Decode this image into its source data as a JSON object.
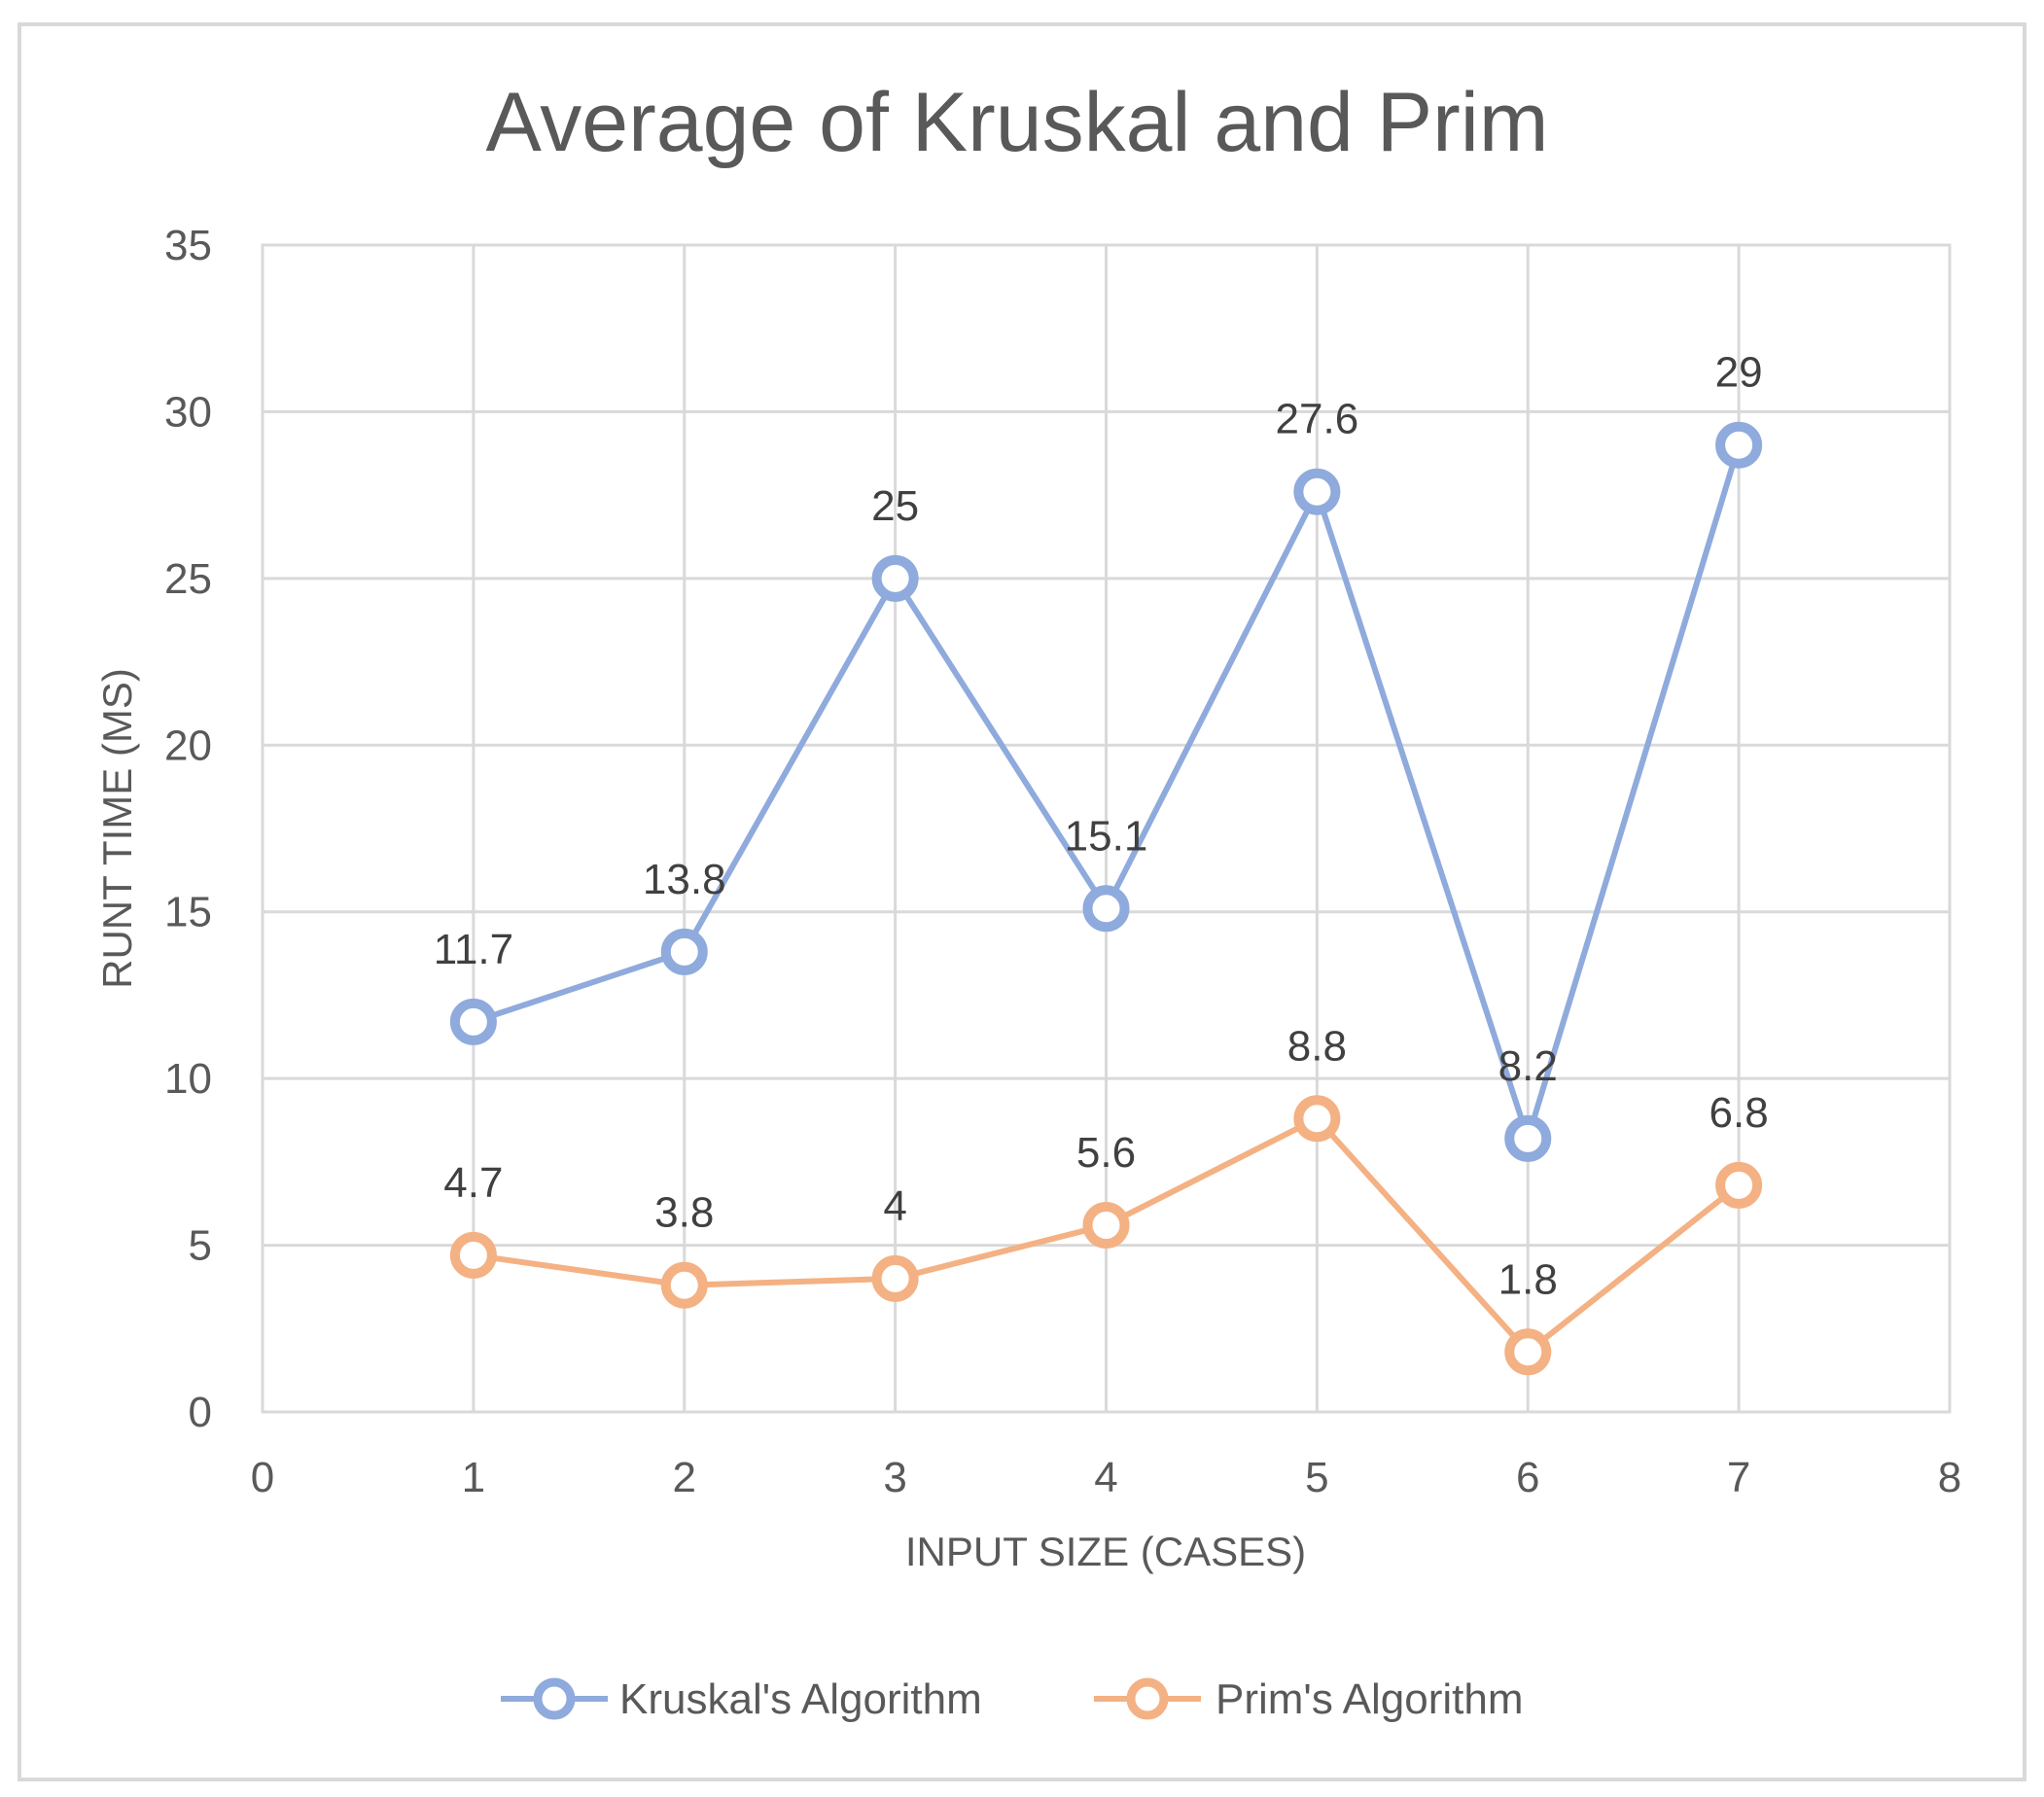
{
  "chart_data": {
    "type": "line",
    "title": "Average of Kruskal and Prim",
    "xlabel": "INPUT SIZE (CASES)",
    "ylabel": "RUNT TIME (MS)",
    "xlim": [
      0,
      8
    ],
    "ylim": [
      0,
      35
    ],
    "x_ticks": [
      "0",
      "1",
      "2",
      "3",
      "4",
      "5",
      "6",
      "7",
      "8"
    ],
    "y_ticks": [
      "0",
      "5",
      "10",
      "15",
      "20",
      "25",
      "30",
      "35"
    ],
    "grid": true,
    "legend_position": "bottom",
    "series": [
      {
        "name": "Kruskal's Algorithm",
        "color": "#8faadc",
        "x": [
          1,
          2,
          3,
          4,
          5,
          6,
          7
        ],
        "y": [
          11.7,
          13.8,
          25,
          15.1,
          27.6,
          8.2,
          29
        ],
        "labels": [
          "11.7",
          "13.8",
          "25",
          "15.1",
          "27.6",
          "8.2",
          "29"
        ]
      },
      {
        "name": "Prim's Algorithm",
        "color": "#f4b183",
        "x": [
          1,
          2,
          3,
          4,
          5,
          6,
          7
        ],
        "y": [
          4.7,
          3.8,
          4,
          5.6,
          8.8,
          1.8,
          6.8
        ],
        "labels": [
          "4.7",
          "3.8",
          "4",
          "5.6",
          "8.8",
          "1.8",
          "6.8"
        ]
      }
    ]
  }
}
